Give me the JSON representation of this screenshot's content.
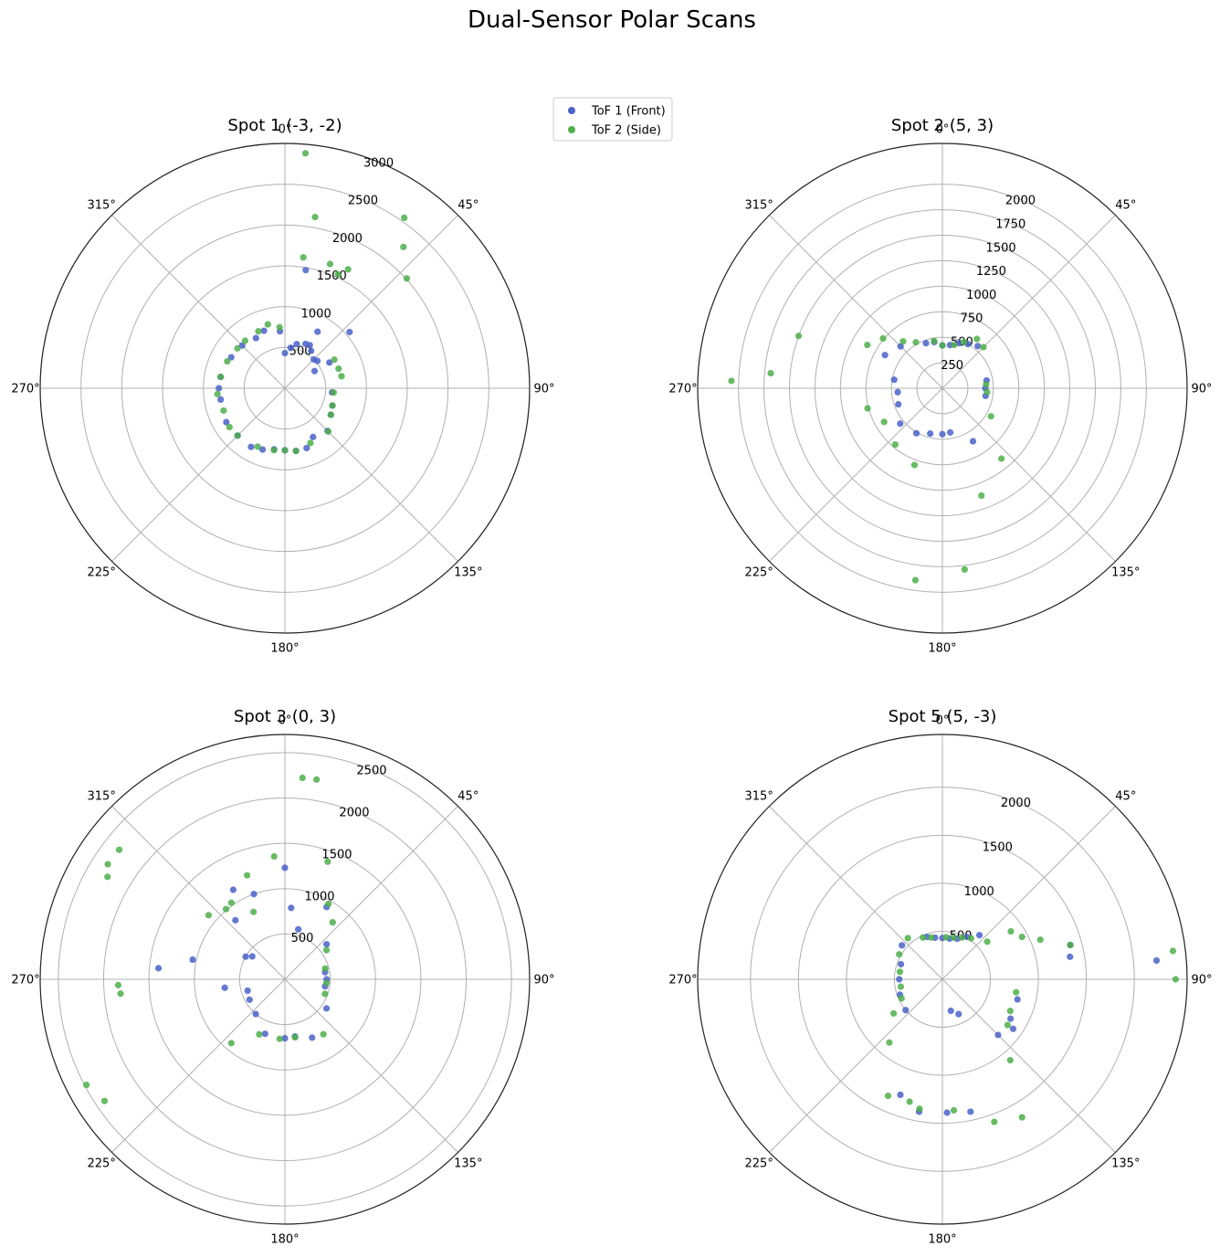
{
  "title": "Dual-Sensor Polar Scans",
  "legend": {
    "placement": "upper-center",
    "entries": [
      {
        "label": "ToF 1 (Front)",
        "color": "#4a61c9"
      },
      {
        "label": "ToF 2 (Side)",
        "color": "#4daf4a"
      }
    ]
  },
  "chart_data": [
    {
      "type": "scatter",
      "projection": "polar",
      "title": "Spot 1 (-3, -2)",
      "theta_zero": "north",
      "theta_direction": "clockwise",
      "theta_ticks": [
        "0°",
        "45°",
        "90°",
        "135°",
        "180°",
        "225°",
        "270°",
        "315°"
      ],
      "r_max": 3000,
      "r_ticks": [
        500,
        1000,
        1500,
        2000,
        2500,
        3000
      ],
      "r_tick_labels": [
        "500",
        "1000",
        "1500",
        "2000",
        "2500",
        "3000"
      ],
      "r_label_angle_deg": 22.5,
      "grid": true,
      "series": [
        {
          "name": "ToF 1 (Front)",
          "points": [
            [
              0,
              430
            ],
            [
              8,
              500
            ],
            [
              15,
              560
            ],
            [
              25,
              600
            ],
            [
              30,
              610
            ],
            [
              35,
              560
            ],
            [
              45,
              500
            ],
            [
              50,
              520
            ],
            [
              60,
              420
            ],
            [
              95,
              580
            ],
            [
              110,
              620
            ],
            [
              120,
              650
            ],
            [
              135,
              740
            ],
            [
              150,
              690
            ],
            [
              160,
              780
            ],
            [
              170,
              780
            ],
            [
              180,
              760
            ],
            [
              190,
              760
            ],
            [
              200,
              800
            ],
            [
              210,
              830
            ],
            [
              225,
              820
            ],
            [
              240,
              830
            ],
            [
              260,
              800
            ],
            [
              270,
              810
            ],
            [
              280,
              800
            ],
            [
              300,
              760
            ],
            [
              315,
              740
            ],
            [
              330,
              710
            ],
            [
              340,
              750
            ],
            [
              355,
              700
            ],
            [
              10,
              1470
            ],
            [
              30,
              800
            ],
            [
              49,
              1050
            ],
            [
              60,
              630
            ]
          ]
        },
        {
          "name": "ToF 2 (Side)",
          "points": [
            [
              5,
              2890
            ],
            [
              10,
              2130
            ],
            [
              20,
              1620
            ],
            [
              25,
              1540
            ],
            [
              28,
              1650
            ],
            [
              35,
              2550
            ],
            [
              40,
              2260
            ],
            [
              48,
              2010
            ],
            [
              60,
              700
            ],
            [
              70,
              700
            ],
            [
              78,
              710
            ],
            [
              95,
              600
            ],
            [
              110,
              620
            ],
            [
              120,
              650
            ],
            [
              135,
              750
            ],
            [
              155,
              740
            ],
            [
              170,
              780
            ],
            [
              180,
              760
            ],
            [
              190,
              770
            ],
            [
              205,
              790
            ],
            [
              225,
              820
            ],
            [
              235,
              830
            ],
            [
              250,
              800
            ],
            [
              265,
              830
            ],
            [
              280,
              800
            ],
            [
              295,
              780
            ],
            [
              310,
              760
            ],
            [
              320,
              760
            ],
            [
              335,
              770
            ],
            [
              345,
              810
            ],
            [
              355,
              750
            ],
            [
              8,
              1620
            ]
          ]
        }
      ]
    },
    {
      "type": "scatter",
      "projection": "polar",
      "title": "Spot 2 (5, 3)",
      "theta_zero": "north",
      "theta_direction": "clockwise",
      "theta_ticks": [
        "0°",
        "45°",
        "90°",
        "135°",
        "180°",
        "225°",
        "270°",
        "315°"
      ],
      "r_max": 2400,
      "r_ticks": [
        250,
        500,
        750,
        1000,
        1250,
        1500,
        1750,
        2000
      ],
      "r_tick_labels": [
        "250",
        "500",
        "750",
        "1000",
        "1250",
        "1500",
        "1750",
        "2000"
      ],
      "r_label_angle_deg": 22.5,
      "grid": true,
      "series": [
        {
          "name": "ToF 1 (Front)",
          "points": [
            [
              0,
              420
            ],
            [
              10,
              430
            ],
            [
              20,
              470
            ],
            [
              30,
              500
            ],
            [
              40,
              540
            ],
            [
              80,
              440
            ],
            [
              90,
              420
            ],
            [
              100,
              430
            ],
            [
              150,
              600
            ],
            [
              170,
              440
            ],
            [
              180,
              450
            ],
            [
              195,
              460
            ],
            [
              210,
              510
            ],
            [
              230,
              540
            ],
            [
              250,
              460
            ],
            [
              265,
              440
            ],
            [
              280,
              480
            ],
            [
              300,
              650
            ],
            [
              315,
              580
            ],
            [
              340,
              470
            ],
            [
              350,
              460
            ]
          ]
        },
        {
          "name": "ToF 2 (Side)",
          "points": [
            [
              0,
              420
            ],
            [
              15,
              440
            ],
            [
              25,
              500
            ],
            [
              35,
              590
            ],
            [
              45,
              570
            ],
            [
              85,
              430
            ],
            [
              95,
              440
            ],
            [
              120,
              550
            ],
            [
              140,
              900
            ],
            [
              160,
              1120
            ],
            [
              173,
              1790
            ],
            [
              188,
              1900
            ],
            [
              200,
              800
            ],
            [
              220,
              720
            ],
            [
              240,
              660
            ],
            [
              255,
              760
            ],
            [
              272,
              2070
            ],
            [
              275,
              1690
            ],
            [
              290,
              1500
            ],
            [
              300,
              850
            ],
            [
              310,
              760
            ],
            [
              320,
              600
            ],
            [
              330,
              520
            ],
            [
              350,
              470
            ]
          ]
        }
      ]
    },
    {
      "type": "scatter",
      "projection": "polar",
      "title": "Spot 3 (0, 3)",
      "theta_zero": "north",
      "theta_direction": "clockwise",
      "theta_ticks": [
        "0°",
        "45°",
        "90°",
        "135°",
        "180°",
        "225°",
        "270°",
        "315°"
      ],
      "r_max": 2700,
      "r_ticks": [
        500,
        1000,
        1500,
        2000,
        2500
      ],
      "r_tick_labels": [
        "500",
        "1000",
        "1500",
        "2000",
        "2500"
      ],
      "r_label_angle_deg": 22.5,
      "grid": true,
      "series": [
        {
          "name": "ToF 1 (Front)",
          "points": [
            [
              0,
              1230
            ],
            [
              5,
              790
            ],
            [
              15,
              570
            ],
            [
              30,
              920
            ],
            [
              50,
              600
            ],
            [
              80,
              450
            ],
            [
              90,
              460
            ],
            [
              100,
              450
            ],
            [
              125,
              560
            ],
            [
              155,
              710
            ],
            [
              170,
              640
            ],
            [
              180,
              650
            ],
            [
              200,
              640
            ],
            [
              220,
              500
            ],
            [
              240,
              450
            ],
            [
              253,
              430
            ],
            [
              262,
              670
            ],
            [
              275,
              1400
            ],
            [
              282,
              1040
            ],
            [
              300,
              500
            ],
            [
              305,
              440
            ],
            [
              320,
              850
            ],
            [
              330,
              1140
            ],
            [
              340,
              1000
            ]
          ]
        },
        {
          "name": "ToF 2 (Side)",
          "points": [
            [
              5,
              2230
            ],
            [
              9,
              2230
            ],
            [
              20,
              1380
            ],
            [
              30,
              960
            ],
            [
              40,
              820
            ],
            [
              55,
              560
            ],
            [
              75,
              460
            ],
            [
              95,
              460
            ],
            [
              110,
              470
            ],
            [
              145,
              740
            ],
            [
              170,
              650
            ],
            [
              185,
              660
            ],
            [
              205,
              670
            ],
            [
              220,
              920
            ],
            [
              236,
              2400
            ],
            [
              242,
              2480
            ],
            [
              268,
              1840
            ],
            [
              265,
              1820
            ],
            [
              300,
              2260
            ],
            [
              303,
              2330
            ],
            [
              308,
              2320
            ],
            [
              310,
              1100
            ],
            [
              320,
              1010
            ],
            [
              325,
              1030
            ],
            [
              340,
              1220
            ],
            [
              355,
              1360
            ],
            [
              335,
              820
            ]
          ]
        }
      ]
    },
    {
      "type": "scatter",
      "projection": "polar",
      "title": "Spot 5 (5, -3)",
      "theta_zero": "north",
      "theta_direction": "clockwise",
      "theta_ticks": [
        "0°",
        "45°",
        "90°",
        "135°",
        "180°",
        "225°",
        "270°",
        "315°"
      ],
      "r_max": 2550,
      "r_ticks": [
        500,
        1000,
        1500,
        2000
      ],
      "r_tick_labels": [
        "500",
        "1000",
        "1500",
        "2000"
      ],
      "r_label_angle_deg": 22.5,
      "grid": true,
      "series": [
        {
          "name": "ToF 1 (Front)",
          "points": [
            [
              0,
              430
            ],
            [
              10,
              430
            ],
            [
              20,
              450
            ],
            [
              30,
              510
            ],
            [
              40,
              600
            ],
            [
              75,
              1380
            ],
            [
              80,
              1350
            ],
            [
              85,
              2240
            ],
            [
              105,
              810
            ],
            [
              120,
              820
            ],
            [
              125,
              900
            ],
            [
              135,
              820
            ],
            [
              155,
              400
            ],
            [
              165,
              340
            ],
            [
              178,
              1390
            ],
            [
              168,
              1410
            ],
            [
              190,
              1400
            ],
            [
              200,
              1280
            ],
            [
              230,
              500
            ],
            [
              250,
              470
            ],
            [
              270,
              450
            ],
            [
              290,
              460
            ],
            [
              310,
              550
            ],
            [
              340,
              470
            ],
            [
              350,
              440
            ]
          ]
        },
        {
          "name": "ToF 2 (Side)",
          "points": [
            [
              5,
              440
            ],
            [
              15,
              450
            ],
            [
              25,
              480
            ],
            [
              35,
              520
            ],
            [
              50,
              610
            ],
            [
              55,
              870
            ],
            [
              62,
              940
            ],
            [
              68,
              1100
            ],
            [
              75,
              1380
            ],
            [
              83,
              2420
            ],
            [
              90,
              2430
            ],
            [
              100,
              780
            ],
            [
              115,
              780
            ],
            [
              125,
              830
            ],
            [
              140,
              1100
            ],
            [
              150,
              1660
            ],
            [
              160,
              1580
            ],
            [
              175,
              1370
            ],
            [
              190,
              1370
            ],
            [
              195,
              1320
            ],
            [
              205,
              1340
            ],
            [
              220,
              860
            ],
            [
              235,
              620
            ],
            [
              245,
              470
            ],
            [
              260,
              440
            ],
            [
              280,
              450
            ],
            [
              300,
              520
            ],
            [
              320,
              560
            ],
            [
              335,
              480
            ],
            [
              345,
              450
            ]
          ]
        }
      ]
    }
  ]
}
